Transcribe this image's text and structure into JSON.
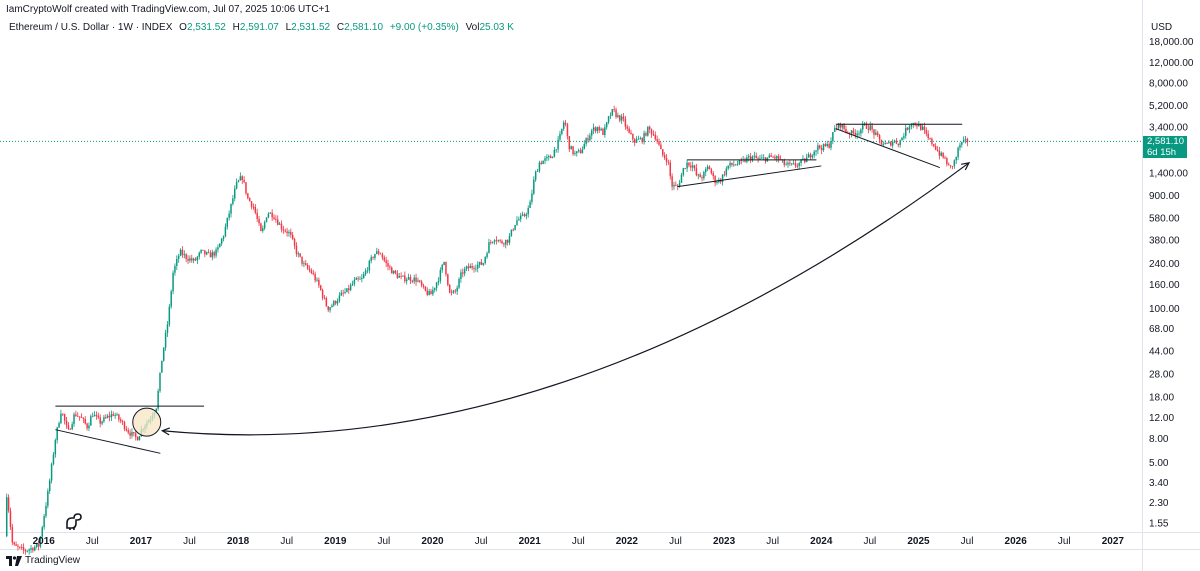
{
  "header": {
    "attribution": "IamCryptoWolf created with TradingView.com, Jul 07, 2025 10:06 UTC+1",
    "symbol": "Ethereum / U.S. Dollar · 1W · INDEX",
    "open_label": "O",
    "open_value": "2,531.52",
    "high_label": "H",
    "high_value": "2,591.07",
    "low_label": "L",
    "low_value": "2,531.52",
    "close_label": "C",
    "close_value": "2,581.10",
    "change": "+9.00 (+0.35%)",
    "vol_label": "Vol",
    "vol_value": "25.03 K",
    "currency": "USD"
  },
  "price_badge": {
    "price": "2,581.10",
    "countdown": "6d 15h"
  },
  "footer": {
    "brand": "TradingView"
  },
  "colors": {
    "up": "#089981",
    "down": "#f23645",
    "annotation": "#131722",
    "circle_fill": "#f7e6c4"
  },
  "chart_data": {
    "type": "candlestick",
    "title": "Ethereum / U.S. Dollar · 1W · INDEX",
    "scale": "log",
    "ylim": [
      1.3,
      20000
    ],
    "xlim": [
      2015.55,
      2027.3
    ],
    "x_ticks": [
      {
        "label": "2016",
        "t": 2016.0,
        "bold": true
      },
      {
        "label": "Jul",
        "t": 2016.5
      },
      {
        "label": "2017",
        "t": 2017.0,
        "bold": true
      },
      {
        "label": "Jul",
        "t": 2017.5
      },
      {
        "label": "2018",
        "t": 2018.0,
        "bold": true
      },
      {
        "label": "Jul",
        "t": 2018.5
      },
      {
        "label": "2019",
        "t": 2019.0,
        "bold": true
      },
      {
        "label": "Jul",
        "t": 2019.5
      },
      {
        "label": "2020",
        "t": 2020.0,
        "bold": true
      },
      {
        "label": "Jul",
        "t": 2020.5
      },
      {
        "label": "2021",
        "t": 2021.0,
        "bold": true
      },
      {
        "label": "Jul",
        "t": 2021.5
      },
      {
        "label": "2022",
        "t": 2022.0,
        "bold": true
      },
      {
        "label": "Jul",
        "t": 2022.5
      },
      {
        "label": "2023",
        "t": 2023.0,
        "bold": true
      },
      {
        "label": "Jul",
        "t": 2023.5
      },
      {
        "label": "2024",
        "t": 2024.0,
        "bold": true
      },
      {
        "label": "Jul",
        "t": 2024.5
      },
      {
        "label": "2025",
        "t": 2025.0,
        "bold": true
      },
      {
        "label": "Jul",
        "t": 2025.5
      },
      {
        "label": "2026",
        "t": 2026.0,
        "bold": true
      },
      {
        "label": "Jul",
        "t": 2026.5
      },
      {
        "label": "2027",
        "t": 2027.0,
        "bold": true
      }
    ],
    "y_ticks": [
      {
        "label": "18,000.00",
        "v": 18000
      },
      {
        "label": "12,000.00",
        "v": 12000
      },
      {
        "label": "8,000.00",
        "v": 8000
      },
      {
        "label": "5,200.00",
        "v": 5200
      },
      {
        "label": "3,400.00",
        "v": 3400
      },
      {
        "label": "1,400.00",
        "v": 1400
      },
      {
        "label": "900.00",
        "v": 900
      },
      {
        "label": "580.00",
        "v": 580
      },
      {
        "label": "380.00",
        "v": 380
      },
      {
        "label": "240.00",
        "v": 240
      },
      {
        "label": "160.00",
        "v": 160
      },
      {
        "label": "100.00",
        "v": 100
      },
      {
        "label": "68.00",
        "v": 68
      },
      {
        "label": "44.00",
        "v": 44
      },
      {
        "label": "28.00",
        "v": 28
      },
      {
        "label": "18.00",
        "v": 18
      },
      {
        "label": "12.00",
        "v": 12
      },
      {
        "label": "8.00",
        "v": 8
      },
      {
        "label": "5.00",
        "v": 5
      },
      {
        "label": "3.40",
        "v": 3.4
      },
      {
        "label": "2.30",
        "v": 2.3
      },
      {
        "label": "1.55",
        "v": 1.55
      }
    ],
    "last_price": 2581.1,
    "price_path": [
      [
        2015.6,
        1.2
      ],
      [
        2015.62,
        2.8
      ],
      [
        2015.68,
        1.0
      ],
      [
        2015.8,
        0.9
      ],
      [
        2015.95,
        1.0
      ],
      [
        2016.05,
        3.0
      ],
      [
        2016.12,
        8.0
      ],
      [
        2016.18,
        14
      ],
      [
        2016.25,
        9.0
      ],
      [
        2016.32,
        13
      ],
      [
        2016.38,
        12
      ],
      [
        2016.45,
        10
      ],
      [
        2016.5,
        13
      ],
      [
        2016.58,
        11
      ],
      [
        2016.65,
        12
      ],
      [
        2016.72,
        13
      ],
      [
        2016.8,
        11
      ],
      [
        2016.88,
        9
      ],
      [
        2016.96,
        8
      ],
      [
        2017.02,
        10
      ],
      [
        2017.1,
        12
      ],
      [
        2017.16,
        15
      ],
      [
        2017.22,
        40
      ],
      [
        2017.28,
        80
      ],
      [
        2017.33,
        200
      ],
      [
        2017.4,
        300
      ],
      [
        2017.47,
        270
      ],
      [
        2017.55,
        250
      ],
      [
        2017.62,
        300
      ],
      [
        2017.7,
        280
      ],
      [
        2017.78,
        300
      ],
      [
        2017.85,
        420
      ],
      [
        2017.92,
        700
      ],
      [
        2017.98,
        1100
      ],
      [
        2018.04,
        1300
      ],
      [
        2018.1,
        850
      ],
      [
        2018.16,
        720
      ],
      [
        2018.24,
        420
      ],
      [
        2018.3,
        650
      ],
      [
        2018.36,
        620
      ],
      [
        2018.45,
        480
      ],
      [
        2018.53,
        430
      ],
      [
        2018.6,
        300
      ],
      [
        2018.68,
        230
      ],
      [
        2018.76,
        200
      ],
      [
        2018.84,
        150
      ],
      [
        2018.92,
        100
      ],
      [
        2018.98,
        110
      ],
      [
        2019.06,
        130
      ],
      [
        2019.12,
        140
      ],
      [
        2019.2,
        170
      ],
      [
        2019.27,
        175
      ],
      [
        2019.34,
        230
      ],
      [
        2019.4,
        290
      ],
      [
        2019.46,
        300
      ],
      [
        2019.52,
        240
      ],
      [
        2019.6,
        200
      ],
      [
        2019.68,
        180
      ],
      [
        2019.76,
        180
      ],
      [
        2019.84,
        175
      ],
      [
        2019.92,
        140
      ],
      [
        2019.98,
        130
      ],
      [
        2020.06,
        180
      ],
      [
        2020.12,
        250
      ],
      [
        2020.18,
        130
      ],
      [
        2020.24,
        140
      ],
      [
        2020.3,
        200
      ],
      [
        2020.36,
        220
      ],
      [
        2020.44,
        230
      ],
      [
        2020.52,
        240
      ],
      [
        2020.58,
        350
      ],
      [
        2020.64,
        400
      ],
      [
        2020.7,
        360
      ],
      [
        2020.78,
        380
      ],
      [
        2020.86,
        550
      ],
      [
        2020.94,
        600
      ],
      [
        2021.0,
        730
      ],
      [
        2021.05,
        1300
      ],
      [
        2021.1,
        1700
      ],
      [
        2021.16,
        1800
      ],
      [
        2021.22,
        1900
      ],
      [
        2021.3,
        2600
      ],
      [
        2021.36,
        4000
      ],
      [
        2021.4,
        2400
      ],
      [
        2021.46,
        2000
      ],
      [
        2021.52,
        2100
      ],
      [
        2021.58,
        2600
      ],
      [
        2021.64,
        3200
      ],
      [
        2021.7,
        3400
      ],
      [
        2021.76,
        3000
      ],
      [
        2021.82,
        4200
      ],
      [
        2021.86,
        4700
      ],
      [
        2021.9,
        4200
      ],
      [
        2021.96,
        3900
      ],
      [
        2022.02,
        3000
      ],
      [
        2022.08,
        2600
      ],
      [
        2022.16,
        2700
      ],
      [
        2022.22,
        3300
      ],
      [
        2022.3,
        2800
      ],
      [
        2022.36,
        2000
      ],
      [
        2022.42,
        1800
      ],
      [
        2022.46,
        1100
      ],
      [
        2022.52,
        1050
      ],
      [
        2022.58,
        1500
      ],
      [
        2022.62,
        1700
      ],
      [
        2022.68,
        1600
      ],
      [
        2022.72,
        1300
      ],
      [
        2022.78,
        1300
      ],
      [
        2022.84,
        1600
      ],
      [
        2022.9,
        1200
      ],
      [
        2022.96,
        1200
      ],
      [
        2023.04,
        1600
      ],
      [
        2023.1,
        1650
      ],
      [
        2023.18,
        1700
      ],
      [
        2023.24,
        1850
      ],
      [
        2023.3,
        1900
      ],
      [
        2023.36,
        1800
      ],
      [
        2023.42,
        1850
      ],
      [
        2023.5,
        1900
      ],
      [
        2023.56,
        1850
      ],
      [
        2023.62,
        1650
      ],
      [
        2023.7,
        1600
      ],
      [
        2023.76,
        1650
      ],
      [
        2023.84,
        1800
      ],
      [
        2023.9,
        2050
      ],
      [
        2023.96,
        2300
      ],
      [
        2024.02,
        2300
      ],
      [
        2024.08,
        2400
      ],
      [
        2024.14,
        3300
      ],
      [
        2024.2,
        3600
      ],
      [
        2024.26,
        3100
      ],
      [
        2024.32,
        3000
      ],
      [
        2024.38,
        3100
      ],
      [
        2024.44,
        3500
      ],
      [
        2024.5,
        3400
      ],
      [
        2024.56,
        2900
      ],
      [
        2024.62,
        2500
      ],
      [
        2024.68,
        2400
      ],
      [
        2024.74,
        2600
      ],
      [
        2024.8,
        2500
      ],
      [
        2024.86,
        3100
      ],
      [
        2024.92,
        3700
      ],
      [
        2024.98,
        3600
      ],
      [
        2025.04,
        3300
      ],
      [
        2025.1,
        2700
      ],
      [
        2025.16,
        2400
      ],
      [
        2025.22,
        2000
      ],
      [
        2025.28,
        1800
      ],
      [
        2025.32,
        1500
      ],
      [
        2025.38,
        1800
      ],
      [
        2025.42,
        2400
      ],
      [
        2025.46,
        2500
      ],
      [
        2025.5,
        2600
      ],
      [
        2025.52,
        2581
      ]
    ],
    "annotations": {
      "trendlines": [
        [
          [
            2016.12,
            15
          ],
          [
            2017.65,
            15
          ]
        ],
        [
          [
            2016.12,
            9.5
          ],
          [
            2017.2,
            6
          ]
        ],
        [
          [
            2022.62,
            1800
          ],
          [
            2023.95,
            1800
          ]
        ],
        [
          [
            2022.52,
            1070
          ],
          [
            2024.0,
            1600
          ]
        ],
        [
          [
            2024.15,
            3600
          ],
          [
            2025.45,
            3600
          ]
        ],
        [
          [
            2024.15,
            3300
          ],
          [
            2025.22,
            1550
          ]
        ]
      ],
      "curve": {
        "from": [
          2017.22,
          9.3
        ],
        "control": [
          2021.3,
          4.5
        ],
        "to": [
          2025.52,
          1700
        ]
      },
      "circle": {
        "t": 2017.06,
        "v": 11
      }
    }
  }
}
